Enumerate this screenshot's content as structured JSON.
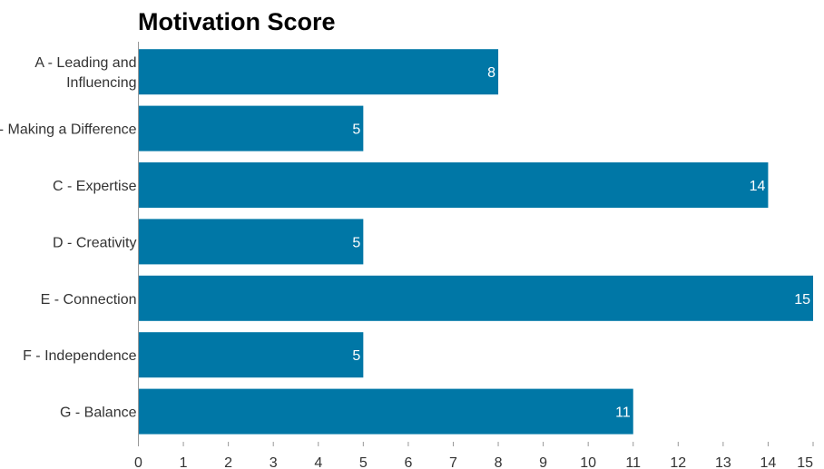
{
  "chart_data": {
    "type": "bar",
    "orientation": "horizontal",
    "title": "Motivation Score",
    "categories": [
      "A - Leading and Influencing",
      "B - Making a Difference",
      "C - Expertise",
      "D - Creativity",
      "E - Connection",
      "F - Independence",
      "G - Balance"
    ],
    "values": [
      8,
      5,
      14,
      5,
      15,
      5,
      11
    ],
    "xlim": [
      0,
      15
    ],
    "xticks": [
      0,
      1,
      2,
      3,
      4,
      5,
      6,
      7,
      8,
      9,
      10,
      11,
      12,
      13,
      14,
      15
    ],
    "xlabel": "",
    "ylabel": "",
    "grid": false,
    "data_labels": true,
    "bar_color": "#0077a6"
  }
}
